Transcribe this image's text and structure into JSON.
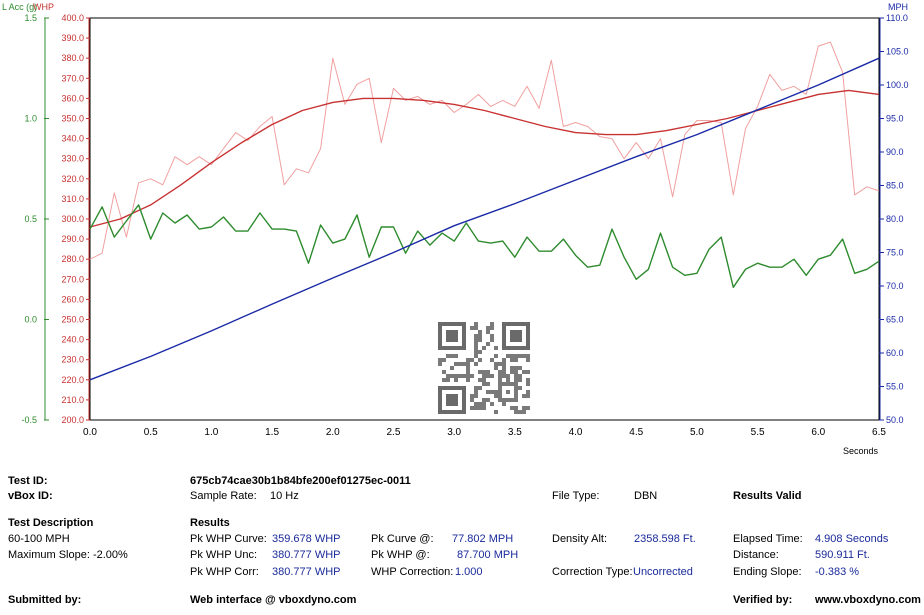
{
  "chart_data": {
    "type": "line",
    "xlabel": "Seconds",
    "xlim": [
      0,
      6.5
    ],
    "x_ticks": [
      "0.0",
      "0.5",
      "1.0",
      "1.5",
      "2.0",
      "2.5",
      "3.0",
      "3.5",
      "4.0",
      "4.5",
      "5.0",
      "5.5",
      "6.0",
      "6.5"
    ],
    "axes": {
      "lacc": {
        "label": "L Acc (g)",
        "color": "#2e8b2e",
        "range": [
          -0.5,
          1.5
        ],
        "ticks": [
          "1.5",
          "1.0",
          "0.5",
          "0.0",
          "-0.5"
        ]
      },
      "whp": {
        "label": "WHP",
        "color": "#c83232",
        "range": [
          200,
          400
        ],
        "ticks": [
          "400.0",
          "390.0",
          "380.0",
          "370.0",
          "360.0",
          "350.0",
          "340.0",
          "330.0",
          "320.0",
          "310.0",
          "300.0",
          "290.0",
          "280.0",
          "270.0",
          "260.0",
          "250.0",
          "240.0",
          "230.0",
          "220.0",
          "210.0",
          "200.0"
        ]
      },
      "mph": {
        "label": "MPH",
        "color": "#1a2aa6",
        "range": [
          50,
          110
        ],
        "ticks": [
          "110.0",
          "105.0",
          "100.0",
          "95.0",
          "90.0",
          "85.0",
          "80.0",
          "75.0",
          "70.0",
          "65.0",
          "60.0",
          "55.0",
          "50.0"
        ]
      }
    },
    "series": [
      {
        "axis": "whp",
        "color": "#f0a0a0",
        "x": [
          0,
          0.1,
          0.2,
          0.3,
          0.4,
          0.5,
          0.6,
          0.7,
          0.8,
          0.9,
          1.0,
          1.1,
          1.2,
          1.3,
          1.4,
          1.5,
          1.6,
          1.7,
          1.8,
          1.9,
          2.0,
          2.1,
          2.2,
          2.3,
          2.4,
          2.5,
          2.6,
          2.7,
          2.8,
          2.9,
          3.0,
          3.1,
          3.2,
          3.3,
          3.4,
          3.5,
          3.6,
          3.7,
          3.8,
          3.9,
          4.0,
          4.1,
          4.2,
          4.3,
          4.4,
          4.5,
          4.6,
          4.7,
          4.8,
          4.9,
          5.0,
          5.1,
          5.2,
          5.3,
          5.4,
          5.5,
          5.6,
          5.7,
          5.8,
          5.9,
          6.0,
          6.1,
          6.2,
          6.3,
          6.4,
          6.5
        ],
        "values": [
          280,
          283,
          313,
          291,
          318,
          320,
          317,
          331,
          327,
          331,
          327,
          335,
          343,
          339,
          346,
          351,
          317,
          325,
          323,
          335,
          380,
          357,
          367,
          370,
          338,
          365,
          359,
          361,
          357,
          359,
          353,
          357,
          362,
          356,
          359,
          356,
          366,
          355,
          379,
          346,
          348,
          346,
          341,
          340,
          330,
          338,
          330,
          340,
          311,
          342,
          349,
          349,
          348,
          312,
          345,
          356,
          372,
          364,
          366,
          362,
          386,
          388,
          373,
          312,
          316,
          314
        ]
      },
      {
        "axis": "whp",
        "color": "#c83232",
        "x": [
          0,
          0.25,
          0.5,
          0.75,
          1.0,
          1.25,
          1.5,
          1.75,
          2.0,
          2.25,
          2.5,
          2.75,
          3.0,
          3.25,
          3.5,
          3.75,
          4.0,
          4.25,
          4.5,
          4.75,
          5.0,
          5.25,
          5.5,
          5.75,
          6.0,
          6.25,
          6.5
        ],
        "values": [
          296,
          300,
          307,
          317,
          328,
          338,
          347,
          354,
          358,
          360,
          360,
          359,
          357,
          354,
          350,
          346,
          343,
          342,
          342,
          344,
          347,
          350,
          354,
          358,
          362,
          364,
          362
        ]
      },
      {
        "axis": "lacc",
        "color": "#2e8b2e",
        "x": [
          0,
          0.1,
          0.2,
          0.3,
          0.4,
          0.5,
          0.6,
          0.7,
          0.8,
          0.9,
          1.0,
          1.1,
          1.2,
          1.3,
          1.4,
          1.5,
          1.6,
          1.7,
          1.8,
          1.9,
          2.0,
          2.1,
          2.2,
          2.3,
          2.4,
          2.5,
          2.6,
          2.7,
          2.8,
          2.9,
          3.0,
          3.1,
          3.2,
          3.3,
          3.4,
          3.5,
          3.6,
          3.7,
          3.8,
          3.9,
          4.0,
          4.1,
          4.2,
          4.3,
          4.4,
          4.5,
          4.6,
          4.7,
          4.8,
          4.9,
          5.0,
          5.1,
          5.2,
          5.3,
          5.4,
          5.5,
          5.6,
          5.7,
          5.8,
          5.9,
          6.0,
          6.1,
          6.2,
          6.3,
          6.4,
          6.5
        ],
        "values": [
          0.45,
          0.56,
          0.41,
          0.49,
          0.57,
          0.4,
          0.53,
          0.48,
          0.52,
          0.45,
          0.46,
          0.51,
          0.44,
          0.44,
          0.53,
          0.45,
          0.45,
          0.44,
          0.28,
          0.47,
          0.38,
          0.4,
          0.52,
          0.31,
          0.46,
          0.46,
          0.33,
          0.44,
          0.37,
          0.43,
          0.39,
          0.48,
          0.39,
          0.38,
          0.39,
          0.31,
          0.41,
          0.34,
          0.34,
          0.4,
          0.32,
          0.26,
          0.27,
          0.45,
          0.31,
          0.2,
          0.25,
          0.43,
          0.26,
          0.22,
          0.23,
          0.35,
          0.41,
          0.16,
          0.25,
          0.28,
          0.26,
          0.26,
          0.3,
          0.22,
          0.3,
          0.32,
          0.4,
          0.23,
          0.25,
          0.29
        ]
      },
      {
        "axis": "mph",
        "color": "#1a2aa6",
        "x": [
          0,
          0.5,
          1.0,
          1.5,
          2.0,
          2.5,
          3.0,
          3.5,
          4.0,
          4.5,
          5.0,
          5.5,
          6.0,
          6.5
        ],
        "values": [
          56,
          59.5,
          63.3,
          67.3,
          71.2,
          75,
          79,
          82.3,
          85.8,
          89.3,
          92.6,
          96.3,
          100,
          104
        ]
      }
    ]
  },
  "info": {
    "test_id_label": "Test ID:",
    "test_id_value": "675cb74cae30b1b84bfe200ef01275ec-0011",
    "vbox_id_label": "vBox ID:",
    "sample_rate_label": "Sample Rate:",
    "sample_rate_value": "10 Hz",
    "file_type_label": "File Type:",
    "file_type_value": "DBN",
    "results_valid": "Results Valid",
    "test_description_label": "Test Description",
    "test_description_value": "60-100 MPH",
    "max_slope": "Maximum Slope: -2.00%",
    "results_label": "Results",
    "pk_whp_curve_label": "Pk WHP Curve:",
    "pk_whp_curve_value": "359.678 WHP",
    "pk_whp_unc_label": "Pk WHP Unc:",
    "pk_whp_unc_value": "380.777 WHP",
    "pk_whp_corr_label": "Pk WHP Corr:",
    "pk_whp_corr_value": "380.777 WHP",
    "pk_curve_at_label": "Pk Curve @:",
    "pk_curve_at_value": "77.802 MPH",
    "pk_whp_at_label": "Pk WHP @:",
    "pk_whp_at_value": "87.700 MPH",
    "whp_correction_label": "WHP Correction:",
    "whp_correction_value": "1.000",
    "density_alt_label": "Density Alt:",
    "density_alt_value": "2358.598 Ft.",
    "correction_type_label": "Correction Type:",
    "correction_type_value": "Uncorrected",
    "elapsed_time_label": "Elapsed Time:",
    "elapsed_time_value": "4.908 Seconds",
    "distance_label": "Distance:",
    "distance_value": "590.911 Ft.",
    "ending_slope_label": "Ending Slope:",
    "ending_slope_value": "-0.383 %",
    "submitted_by_label": "Submitted by:",
    "web_interface": "Web interface @ vboxdyno.com",
    "verified_by_label": "Verified by:",
    "verified_by_value": "www.vboxdyno.com"
  }
}
